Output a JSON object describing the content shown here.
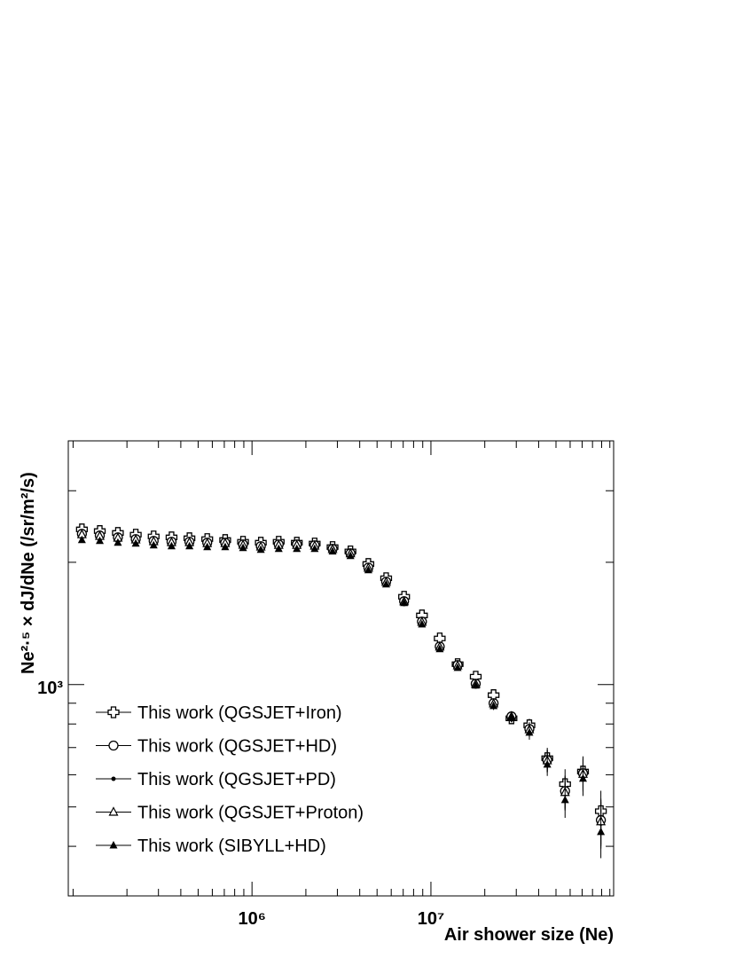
{
  "chart_data": {
    "type": "scatter",
    "xlabel": "Air shower size (Ne)",
    "ylabel": "Ne²·⁵ × dJ/dNe (/sr/m²/s)",
    "x": [
      112000,
      141000,
      178000,
      224000,
      282000,
      355000,
      447000,
      562000,
      708000,
      891000,
      1120000,
      1410000,
      1780000,
      2240000,
      2820000,
      3550000,
      4470000,
      5620000,
      7080000,
      8910000,
      11200000,
      14100000,
      17800000,
      22400000,
      28200000,
      35500000,
      44700000,
      56200000,
      70800000,
      89100000
    ],
    "series": [
      {
        "name": "This work (QGSJET+Iron)",
        "marker": "open-cross",
        "color": "#000000",
        "values": [
          2410,
          2387,
          2362,
          2339,
          2316,
          2303,
          2292,
          2281,
          2269,
          2247,
          2235,
          2247,
          2235,
          2224,
          2180,
          2127,
          1981,
          1827,
          1645,
          1480,
          1299,
          1123,
          1046,
          942,
          826,
          794,
          659,
          569,
          611,
          488
        ],
        "errors": [
          10,
          10,
          10,
          10,
          10,
          10,
          10,
          10,
          10,
          10,
          10,
          10,
          10,
          10,
          10,
          10,
          10,
          10,
          10,
          10,
          10,
          12,
          15,
          20,
          25,
          30,
          40,
          50,
          55,
          60
        ]
      },
      {
        "name": "This work (QGSJET+HD)",
        "marker": "open-circle",
        "color": "#000000",
        "values": [
          2350,
          2328,
          2303,
          2281,
          2258,
          2247,
          2247,
          2235,
          2235,
          2213,
          2191,
          2213,
          2213,
          2202,
          2158,
          2104,
          1941,
          1792,
          1604,
          1429,
          1241,
          1117,
          1005,
          900,
          835,
          778,
          652,
          547,
          605,
          464
        ],
        "errors": [
          10,
          10,
          10,
          10,
          10,
          10,
          10,
          10,
          10,
          10,
          10,
          10,
          10,
          10,
          10,
          10,
          10,
          10,
          10,
          10,
          10,
          12,
          15,
          20,
          25,
          30,
          40,
          50,
          55,
          60
        ]
      },
      {
        "name": "This work (QGSJET+PD)",
        "marker": "dot",
        "color": "#000000",
        "values": [
          2330,
          2310,
          2285,
          2265,
          2240,
          2230,
          2228,
          2215,
          2214,
          2195,
          2175,
          2190,
          2190,
          2185,
          2145,
          2095,
          1930,
          1782,
          1596,
          1420,
          1235,
          1110,
          1000,
          895,
          832,
          772,
          648,
          540,
          600,
          455
        ],
        "errors": [
          10,
          10,
          10,
          10,
          10,
          10,
          10,
          10,
          10,
          10,
          10,
          10,
          10,
          10,
          10,
          10,
          10,
          10,
          10,
          10,
          10,
          12,
          15,
          20,
          25,
          30,
          40,
          50,
          55,
          60
        ]
      },
      {
        "name": "This work (QGSJET+Proton)",
        "marker": "open-triangle",
        "color": "#000000",
        "values": [
          2340,
          2318,
          2295,
          2272,
          2250,
          2238,
          2238,
          2226,
          2226,
          2205,
          2183,
          2203,
          2203,
          2194,
          2152,
          2100,
          1936,
          1787,
          1600,
          1425,
          1238,
          1113,
          1002,
          897,
          833,
          775,
          650,
          543,
          602,
          460
        ],
        "errors": [
          10,
          10,
          10,
          10,
          10,
          10,
          10,
          10,
          10,
          10,
          10,
          10,
          10,
          10,
          10,
          10,
          10,
          10,
          10,
          10,
          10,
          12,
          15,
          20,
          25,
          30,
          40,
          50,
          55,
          60
        ]
      },
      {
        "name": "This work (SIBYLL+HD)",
        "marker": "filled-triangle",
        "color": "#000000",
        "values": [
          2269,
          2258,
          2235,
          2224,
          2202,
          2191,
          2191,
          2180,
          2180,
          2169,
          2148,
          2158,
          2158,
          2158,
          2127,
          2073,
          1913,
          1765,
          1588,
          1407,
          1223,
          1100,
          995,
          886,
          835,
          762,
          636,
          520,
          587,
          434
        ],
        "errors": [
          10,
          10,
          10,
          10,
          10,
          10,
          10,
          10,
          10,
          10,
          10,
          10,
          10,
          10,
          10,
          10,
          10,
          10,
          10,
          10,
          10,
          12,
          15,
          20,
          25,
          30,
          40,
          50,
          55,
          60
        ]
      }
    ],
    "xlim": [
      94000,
      105000000
    ],
    "ylim": [
      302,
      3980
    ],
    "xscale": "log",
    "yscale": "log",
    "xticks": [
      {
        "value": 1000000,
        "label": "10⁶"
      },
      {
        "value": 10000000,
        "label": "10⁷"
      }
    ],
    "xminorticks": [
      100000,
      200000,
      300000,
      400000,
      500000,
      600000,
      700000,
      800000,
      900000,
      2000000,
      3000000,
      4000000,
      5000000,
      6000000,
      7000000,
      8000000,
      9000000,
      20000000,
      30000000,
      40000000,
      50000000,
      60000000,
      70000000,
      80000000,
      90000000,
      100000000
    ],
    "yticks": [
      {
        "value": 1000,
        "label": "10³"
      }
    ],
    "yminorticks": [
      400,
      500,
      600,
      700,
      800,
      900,
      2000,
      3000
    ],
    "legend": "lower left",
    "grid": false
  }
}
